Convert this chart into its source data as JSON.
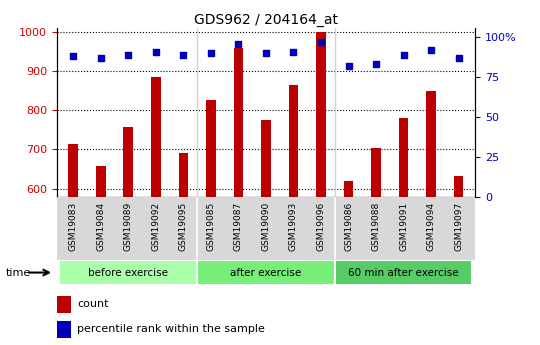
{
  "title": "GDS962 / 204164_at",
  "samples": [
    "GSM19083",
    "GSM19084",
    "GSM19089",
    "GSM19092",
    "GSM19095",
    "GSM19085",
    "GSM19087",
    "GSM19090",
    "GSM19093",
    "GSM19096",
    "GSM19086",
    "GSM19088",
    "GSM19091",
    "GSM19094",
    "GSM19097"
  ],
  "counts": [
    714,
    657,
    757,
    885,
    691,
    825,
    957,
    775,
    864,
    999,
    619,
    703,
    781,
    849,
    632
  ],
  "percentile_ranks": [
    88,
    87,
    89,
    91,
    89,
    90,
    96,
    90,
    91,
    97,
    82,
    83,
    89,
    92,
    87
  ],
  "groups": [
    {
      "label": "before exercise",
      "start": 0,
      "end": 5,
      "color": "#aaffaa"
    },
    {
      "label": "after exercise",
      "start": 5,
      "end": 10,
      "color": "#88ee88"
    },
    {
      "label": "60 min after exercise",
      "start": 10,
      "end": 15,
      "color": "#66dd77"
    }
  ],
  "ylim_left": [
    580,
    1010
  ],
  "ylim_right": [
    0,
    106
  ],
  "yticks_left": [
    600,
    700,
    800,
    900,
    1000
  ],
  "yticks_right": [
    0,
    25,
    50,
    75,
    100
  ],
  "bar_color": "#bb0000",
  "dot_color": "#0000bb",
  "bar_width": 0.35,
  "tick_label_color_left": "#cc0000",
  "tick_label_color_right": "#0000cc",
  "legend_count": "count",
  "legend_percentile": "percentile rank within the sample",
  "group_colors": [
    "#aaffaa",
    "#77ee77",
    "#55cc66"
  ]
}
